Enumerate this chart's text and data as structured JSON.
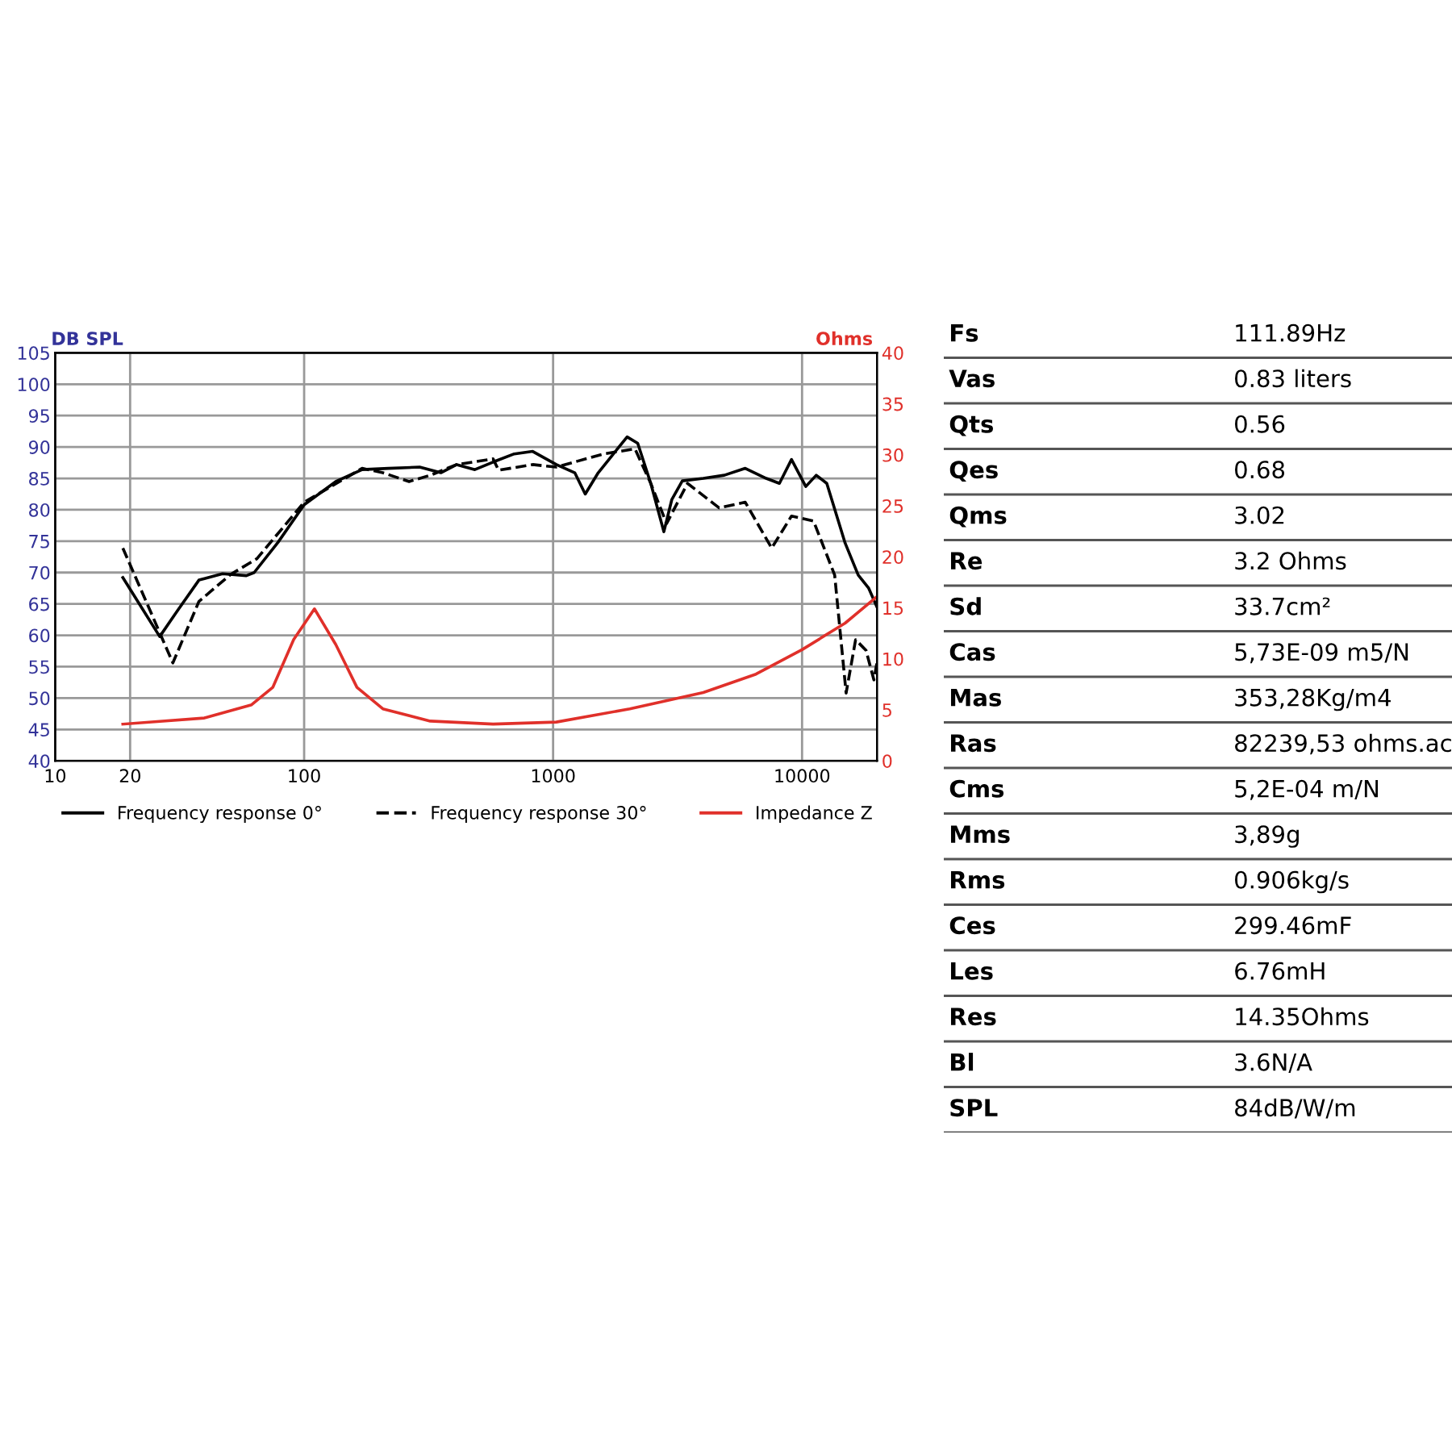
{
  "chart_data": [
    {
      "type": "line",
      "ylabel": "DB SPL",
      "y2label": "Ohms",
      "log": "x",
      "grid": true,
      "legend": "bottom",
      "marker": "none",
      "xlim": [
        10,
        20000
      ],
      "xticks": [
        10,
        20,
        100,
        1000,
        10000
      ],
      "ylim": [
        40,
        105
      ],
      "yticks": [
        40,
        45,
        50,
        55,
        60,
        65,
        70,
        75,
        80,
        85,
        90,
        95,
        100,
        105
      ],
      "y2lim": [
        0,
        40
      ],
      "y2ticks": [
        0,
        5,
        10,
        15,
        20,
        25,
        30,
        35,
        40
      ],
      "series": [
        {
          "name": "Frequency response 0°",
          "color": "#000000",
          "line_style": "solid",
          "x": [
            18.7,
            26.3,
            31.2,
            37.8,
            47,
            58.6,
            63,
            78.5,
            100,
            134,
            171,
            218,
            291,
            354,
            410,
            485,
            574,
            698,
            828,
            1030,
            1222,
            1346,
            1518,
            1714,
            1983,
            2187,
            2468,
            2786,
            2997,
            3304,
            4011,
            4871,
            5913,
            7179,
            8110,
            9070,
            10350,
            11400,
            12570,
            14890,
            16810,
            18520,
            20000
          ],
          "values": [
            69.2,
            59.8,
            64.1,
            68.8,
            69.8,
            69.5,
            70,
            74.8,
            80.8,
            84.5,
            86.4,
            86.6,
            86.8,
            85.9,
            87.2,
            86.4,
            87.6,
            88.9,
            89.3,
            87.2,
            85.9,
            82.5,
            85.9,
            88.5,
            91.6,
            90.6,
            84.2,
            76.5,
            81.6,
            84.6,
            85,
            85.5,
            86.6,
            85,
            84.2,
            88,
            83.7,
            85.5,
            84.2,
            74.7,
            69.6,
            67.5,
            64.5
          ]
        },
        {
          "name": "Frequency response 30°",
          "color": "#000000",
          "line_style": "dashed",
          "x": [
            18.7,
            29.7,
            37.8,
            50.7,
            64.6,
            100,
            171,
            207,
            264,
            321,
            410,
            574,
            604,
            828,
            1030,
            1596,
            2133,
            2468,
            2856,
            3467,
            4645,
            5913,
            7550,
            9070,
            11120,
            13520,
            15030,
            16410,
            18070,
            19430,
            20000
          ],
          "values": [
            73.9,
            55.6,
            65.4,
            69.7,
            72.2,
            81.2,
            86.6,
            85.9,
            84.5,
            85.5,
            87.2,
            88.1,
            86.3,
            87.2,
            86.8,
            88.9,
            89.7,
            84.2,
            77.8,
            84.2,
            80.3,
            81.2,
            73.9,
            79,
            78.2,
            69.6,
            50.8,
            59.3,
            57.6,
            52.9,
            55.7
          ]
        },
        {
          "name": "Impedance Z",
          "color": "#e0302a",
          "line_style": "solid",
          "axis": "y2",
          "x": [
            18.7,
            39.7,
            61.5,
            74.8,
            90.8,
            110,
            134,
            163,
            207,
            321,
            574,
            1030,
            2033,
            4011,
            6530,
            10000,
            14890,
            20000
          ],
          "values": [
            3.6,
            4.2,
            5.5,
            7.2,
            11.9,
            14.9,
            11.4,
            7.2,
            5.1,
            3.9,
            3.6,
            3.8,
            5.1,
            6.7,
            8.5,
            10.9,
            13.5,
            16.1
          ]
        }
      ]
    },
    {
      "type": "other",
      "categories": [
        "Fs",
        "Vas",
        "Qts",
        "Qes",
        "Qms",
        "Re",
        "Sd",
        "Cas",
        "Mas",
        "Ras",
        "Cms",
        "Mms",
        "Rms",
        "Ces",
        "Les",
        "Res",
        "Bl",
        "SPL"
      ],
      "annotations": [
        "111.89Hz",
        "0.83 liters",
        "0.56",
        "0.68",
        "3.02",
        "3.2 Ohms",
        "33.7cm²",
        "5,73E-09 m5/N",
        "353,28Kg/m4",
        "82239,53 ohms.ac",
        "5,2E-04 m/N",
        "3,89g",
        "0.906kg/s",
        "299.46mF",
        "6.76mH",
        "14.35Ohms",
        "3.6N/A",
        "84dB/W/m"
      ]
    }
  ]
}
